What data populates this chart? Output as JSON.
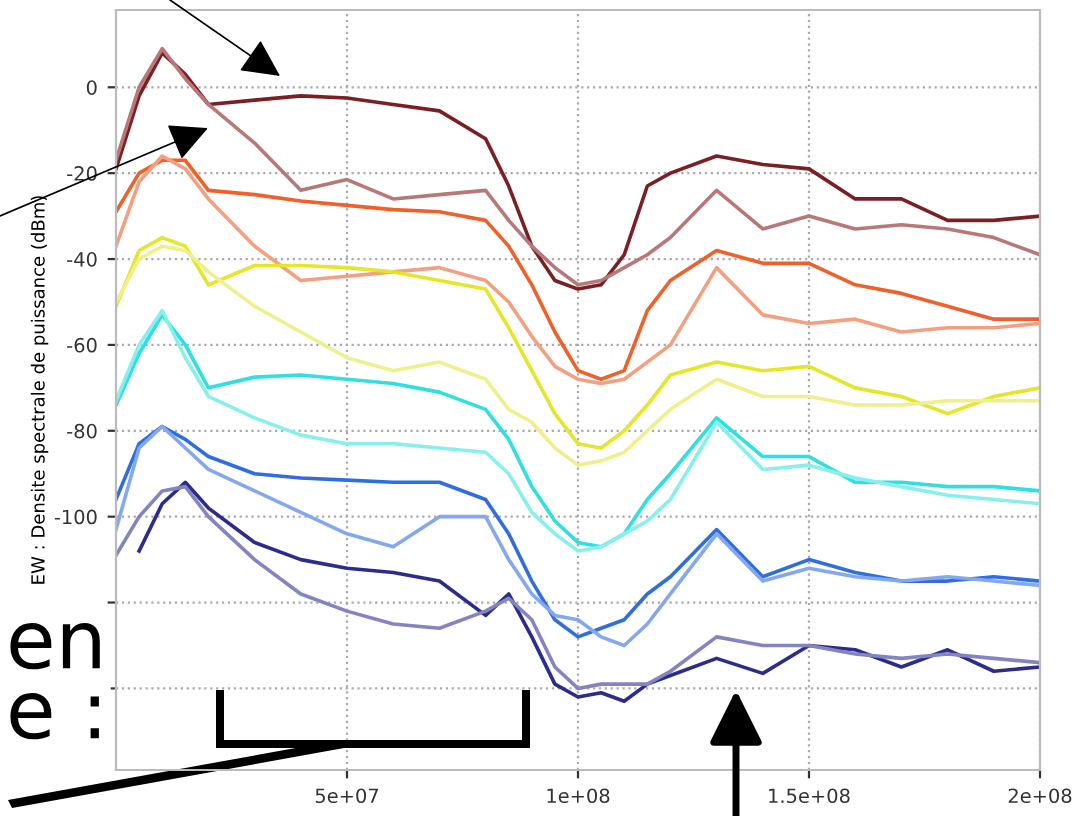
{
  "chart_data": {
    "type": "line",
    "ylabel": "EW : Densite spectrale de puissance (dBm)",
    "annotations": [
      "en",
      "e :"
    ],
    "x": [
      0,
      5000000,
      10000000,
      15000000,
      20000000,
      30000000,
      40000000,
      50000000,
      60000000,
      70000000,
      80000000,
      85000000,
      90000000,
      95000000,
      100000000,
      105000000,
      110000000,
      115000000,
      120000000,
      130000000,
      140000000,
      150000000,
      160000000,
      170000000,
      180000000,
      190000000,
      200000000
    ],
    "xlim": [
      0,
      200000000
    ],
    "xticks": [
      {
        "value": 50000000,
        "label": "5e+07"
      },
      {
        "value": 100000000,
        "label": "1e+08"
      },
      {
        "value": 150000000,
        "label": "1.5e+08"
      },
      {
        "value": 200000000,
        "label": "2e+08"
      }
    ],
    "ylim": [
      -159,
      18
    ],
    "yticks": [
      {
        "value": -140,
        "label": null
      },
      {
        "value": -120,
        "label": null
      },
      -100,
      -80,
      -60,
      -40,
      -20,
      0
    ],
    "grid": true,
    "line_style": "solid",
    "marker": "none",
    "series": [
      {
        "color": "#7a1f24",
        "values": [
          -19,
          -2,
          8,
          3,
          -4,
          -3,
          -2,
          -2.5,
          -4,
          -5.5,
          -12,
          -23,
          -37,
          -45,
          -47,
          -46,
          -39,
          -23,
          -20,
          -16,
          -18,
          -19,
          -26,
          -26,
          -31,
          -31,
          -30
        ]
      },
      {
        "color": "#b87878",
        "values": [
          -17,
          0,
          9,
          2,
          -4,
          -13,
          -24,
          -21.5,
          -26,
          -25,
          -24,
          -31,
          -37,
          -42,
          -46,
          -45,
          -42,
          -39,
          -35,
          -24,
          -33,
          -30,
          -33,
          -32,
          -33,
          -35,
          -39
        ]
      },
      {
        "color": "#f06028",
        "values": [
          -29,
          -20,
          -17,
          -17,
          -24,
          -25,
          -26.5,
          -27.5,
          -28.5,
          -29,
          -31,
          -37,
          -46,
          -57,
          -66,
          -68,
          -66,
          -52,
          -45,
          -38,
          -41,
          -41,
          -46,
          -48,
          -51,
          -54,
          -54
        ]
      },
      {
        "color": "#f4a080",
        "values": [
          -37,
          -22,
          -16,
          -19,
          -26,
          -37,
          -45,
          -44,
          -43,
          -42,
          -45,
          -50,
          -58,
          -65,
          -68,
          -69,
          -68,
          -64,
          -60,
          -42,
          -53,
          -55,
          -54,
          -57,
          -56,
          -56,
          -55
        ]
      },
      {
        "color": "#e4e628",
        "values": [
          -51,
          -38,
          -35,
          -37,
          -46,
          -41.5,
          -41.5,
          -42,
          -43,
          -45,
          -47,
          -56,
          -66,
          -76,
          -83,
          -84,
          -80,
          -74,
          -67,
          -64,
          -66,
          -65,
          -70,
          -72,
          -76,
          -72,
          -70
        ]
      },
      {
        "color": "#eef08c",
        "values": [
          -50,
          -40,
          -37,
          -38,
          -43,
          -51,
          -57,
          -63,
          -66,
          -64,
          -68,
          -75,
          -78,
          -84,
          -88,
          -87,
          -85,
          -80,
          -75,
          -68,
          -72,
          -72,
          -74,
          -74,
          -73,
          -73,
          -73
        ]
      },
      {
        "color": "#30e0e0",
        "values": [
          -74,
          -62,
          -53,
          -60,
          -70,
          -67.5,
          -67,
          -68,
          -69,
          -71,
          -75,
          -82,
          -93,
          -101,
          -106,
          -107,
          -104,
          -96,
          -90,
          -77,
          -86,
          -86,
          -92,
          -92,
          -93,
          -93,
          -94
        ]
      },
      {
        "color": "#88f0ec",
        "values": [
          -73,
          -60,
          -52,
          -63,
          -72,
          -77,
          -81,
          -83,
          -83,
          -84,
          -85,
          -90,
          -99,
          -104,
          -108,
          -107,
          -104,
          -101,
          -96,
          -78,
          -89,
          -88,
          -91,
          -93,
          -95,
          -96,
          -97
        ]
      },
      {
        "color": "#2f6ee0",
        "values": [
          -96,
          -83,
          -79,
          -82,
          -86,
          -90,
          -91,
          -91.5,
          -92,
          -92,
          -96,
          -104,
          -115,
          -124,
          -128,
          -126,
          -124,
          -118,
          -114,
          -103,
          -114,
          -110,
          -113,
          -115,
          -115,
          -114,
          -115
        ]
      },
      {
        "color": "#84a8f0",
        "values": [
          -103,
          -84,
          -79,
          -84,
          -89,
          -94,
          -99,
          -104,
          -107,
          -100,
          -100,
          -110,
          -118,
          -123,
          -124,
          -128,
          -130,
          -125,
          -118,
          -104,
          -115,
          -112,
          -114,
          -115,
          -114,
          -115,
          -116
        ]
      },
      {
        "color": "#2c2c8c",
        "values": [
          null,
          -108,
          -97,
          -92,
          -98,
          -106,
          -110,
          -112,
          -113,
          -115,
          -123,
          -118,
          -128,
          -139,
          -142,
          -141,
          -143,
          -139,
          -137,
          -133,
          -136.5,
          -130,
          -131,
          -135,
          -131,
          -136,
          -135
        ]
      },
      {
        "color": "#8484c0",
        "values": [
          -109,
          -100,
          -94,
          -93,
          -100,
          -110,
          -118,
          -122,
          -125,
          -126,
          -122,
          -119,
          -124,
          -135,
          -140,
          -139,
          -139,
          -139,
          -136,
          -128,
          -130,
          -130,
          -132,
          -133,
          -132,
          -133,
          -134
        ]
      }
    ]
  }
}
